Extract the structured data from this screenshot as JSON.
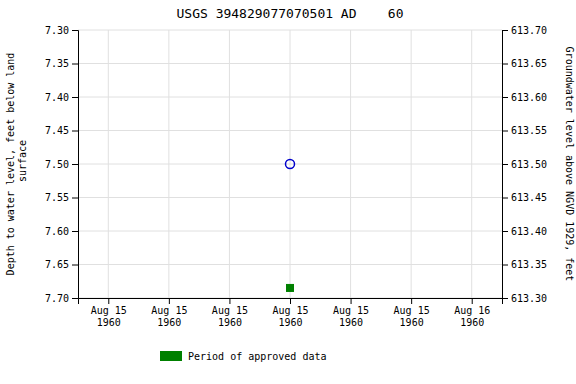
{
  "chart_data": {
    "type": "scatter",
    "title": "USGS 394829077070501 AD    60",
    "ylabel": "Depth to water level, feet below land\n surface",
    "y2label": "Groundwater level above NGVD 1929, feet",
    "categories": [
      "Aug 15\n1960",
      "Aug 15\n1960",
      "Aug 15\n1960",
      "Aug 15\n1960",
      "Aug 15\n1960",
      "Aug 15\n1960",
      "Aug 16\n1960"
    ],
    "series": [
      {
        "color": "#0000cc",
        "marker": "open-circle",
        "values": [
          null,
          null,
          null,
          7.5,
          null,
          null,
          null
        ]
      },
      {
        "name": "Period of approved data",
        "color": "#008000",
        "marker": "square",
        "values": [
          null,
          null,
          null,
          7.685,
          null,
          null,
          null
        ]
      }
    ],
    "ylim": [
      7.7,
      7.3
    ],
    "yticks": [
      {
        "value": 7.3,
        "label": "7.30"
      },
      7.35,
      {
        "value": 7.4,
        "label": "7.40"
      },
      7.45,
      {
        "value": 7.5,
        "label": "7.50"
      },
      7.55,
      {
        "value": 7.6,
        "label": "7.60"
      },
      7.65,
      {
        "value": 7.7,
        "label": "7.70"
      }
    ],
    "y2lim": [
      613.3,
      613.7
    ],
    "y2ticks": [
      {
        "value": 613.7,
        "label": "613.70"
      },
      613.65,
      {
        "value": 613.6,
        "label": "613.60"
      },
      613.55,
      {
        "value": 613.5,
        "label": "613.50"
      },
      613.45,
      {
        "value": 613.4,
        "label": "613.40"
      },
      613.35,
      {
        "value": 613.3,
        "label": "613.30"
      }
    ],
    "grid": true,
    "legend": "bottom"
  }
}
